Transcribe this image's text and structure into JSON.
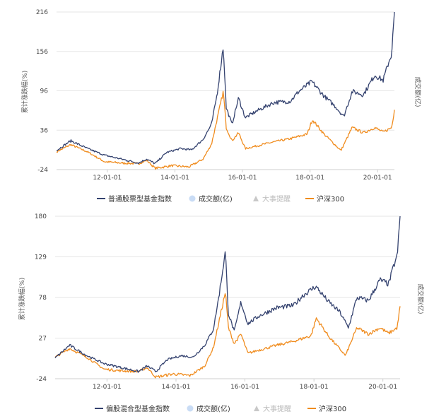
{
  "legend": {
    "volume": "成交额(亿)",
    "events": "大事提醒",
    "index300": "沪深300"
  },
  "charts": [
    {
      "y_axis_label": "累计涨跌幅(%)",
      "right_axis_label": "成交额(亿)",
      "yticks": [
        "216",
        "156",
        "96",
        "36",
        "-24"
      ],
      "xticks": [
        "12-01-01",
        "14-01-01",
        "16-01-01",
        "18-01-01",
        "20-01-01"
      ],
      "legend_series_1": "普通股票型基金指数"
    },
    {
      "y_axis_label": "累计涨跌幅(%)",
      "right_axis_label": "成交额(亿)",
      "yticks": [
        "180",
        "129",
        "78",
        "27",
        "-24"
      ],
      "xticks": [
        "12-01-01",
        "14-01-01",
        "16-01-01",
        "18-01-01",
        "20-01-01"
      ],
      "legend_series_1": "偏股混合型基金指数"
    }
  ],
  "colors": {
    "fund": "#34426f",
    "hs300": "#f08c1e",
    "volume": "#c9dcf5",
    "events": "#c8c8c8"
  },
  "chart_data": [
    {
      "type": "line",
      "x_start": "2010-07-01",
      "x_end": "2020-07-01",
      "ylim": [
        -24,
        216
      ],
      "yticks": [
        -24,
        36,
        96,
        156,
        216
      ],
      "series": [
        {
          "name": "普通股票型基金指数",
          "points": [
            [
              "2010-07-01",
              5
            ],
            [
              "2010-12-01",
              20
            ],
            [
              "2011-06-01",
              8
            ],
            [
              "2011-12-01",
              -2
            ],
            [
              "2012-06-01",
              -8
            ],
            [
              "2012-12-01",
              -14
            ],
            [
              "2013-03-01",
              -8
            ],
            [
              "2013-06-01",
              -15
            ],
            [
              "2013-10-01",
              2
            ],
            [
              "2014-03-01",
              8
            ],
            [
              "2014-07-01",
              6
            ],
            [
              "2014-11-01",
              22
            ],
            [
              "2015-02-01",
              45
            ],
            [
              "2015-04-01",
              90
            ],
            [
              "2015-06-08",
              164
            ],
            [
              "2015-07-10",
              70
            ],
            [
              "2015-09-10",
              45
            ],
            [
              "2015-11-20",
              85
            ],
            [
              "2016-02-01",
              55
            ],
            [
              "2016-06-01",
              65
            ],
            [
              "2016-12-01",
              78
            ],
            [
              "2017-06-01",
              80
            ],
            [
              "2017-09-01",
              95
            ],
            [
              "2018-01-20",
              110
            ],
            [
              "2018-06-01",
              88
            ],
            [
              "2018-10-01",
              72
            ],
            [
              "2019-01-01",
              57
            ],
            [
              "2019-04-01",
              95
            ],
            [
              "2019-08-01",
              90
            ],
            [
              "2019-12-01",
              120
            ],
            [
              "2020-03-01",
              112
            ],
            [
              "2020-05-01",
              140
            ],
            [
              "2020-06-01",
              152
            ],
            [
              "2020-07-01",
              216
            ]
          ]
        },
        {
          "name": "沪深300",
          "points": [
            [
              "2010-07-01",
              3
            ],
            [
              "2010-12-01",
              14
            ],
            [
              "2011-06-01",
              3
            ],
            [
              "2011-12-01",
              -12
            ],
            [
              "2012-06-01",
              -14
            ],
            [
              "2012-12-01",
              -15
            ],
            [
              "2013-03-01",
              -10
            ],
            [
              "2013-06-01",
              -22
            ],
            [
              "2013-12-01",
              -18
            ],
            [
              "2014-06-01",
              -20
            ],
            [
              "2014-11-01",
              -8
            ],
            [
              "2015-02-01",
              15
            ],
            [
              "2015-06-08",
              95
            ],
            [
              "2015-07-10",
              40
            ],
            [
              "2015-09-10",
              20
            ],
            [
              "2015-11-20",
              32
            ],
            [
              "2016-02-01",
              8
            ],
            [
              "2016-12-01",
              18
            ],
            [
              "2017-06-01",
              23
            ],
            [
              "2017-12-01",
              30
            ],
            [
              "2018-01-26",
              52
            ],
            [
              "2018-06-01",
              30
            ],
            [
              "2018-12-01",
              5
            ],
            [
              "2019-04-01",
              40
            ],
            [
              "2019-08-01",
              32
            ],
            [
              "2019-12-01",
              40
            ],
            [
              "2020-03-01",
              33
            ],
            [
              "2020-06-01",
              40
            ],
            [
              "2020-07-01",
              67
            ]
          ]
        }
      ]
    },
    {
      "type": "line",
      "x_start": "2010-07-01",
      "x_end": "2020-07-01",
      "ylim": [
        -24,
        180
      ],
      "yticks": [
        -24,
        27,
        78,
        129,
        180
      ],
      "series": [
        {
          "name": "偏股混合型基金指数",
          "points": [
            [
              "2010-07-01",
              2
            ],
            [
              "2010-12-01",
              18
            ],
            [
              "2011-06-01",
              5
            ],
            [
              "2011-12-01",
              -5
            ],
            [
              "2012-06-01",
              -10
            ],
            [
              "2012-12-01",
              -15
            ],
            [
              "2013-03-01",
              -8
            ],
            [
              "2013-06-01",
              -15
            ],
            [
              "2013-10-01",
              0
            ],
            [
              "2014-03-01",
              5
            ],
            [
              "2014-07-01",
              3
            ],
            [
              "2014-11-01",
              18
            ],
            [
              "2015-02-01",
              38
            ],
            [
              "2015-04-01",
              80
            ],
            [
              "2015-06-08",
              136
            ],
            [
              "2015-07-10",
              58
            ],
            [
              "2015-09-10",
              35
            ],
            [
              "2015-11-20",
              72
            ],
            [
              "2016-02-01",
              45
            ],
            [
              "2016-06-01",
              55
            ],
            [
              "2016-12-01",
              65
            ],
            [
              "2017-06-01",
              68
            ],
            [
              "2017-09-01",
              80
            ],
            [
              "2018-01-20",
              92
            ],
            [
              "2018-06-01",
              73
            ],
            [
              "2018-10-01",
              60
            ],
            [
              "2019-01-01",
              40
            ],
            [
              "2019-04-01",
              78
            ],
            [
              "2019-08-01",
              74
            ],
            [
              "2019-12-01",
              100
            ],
            [
              "2020-03-01",
              95
            ],
            [
              "2020-05-01",
              120
            ],
            [
              "2020-06-01",
              130
            ],
            [
              "2020-07-01",
              180
            ]
          ]
        },
        {
          "name": "沪深300",
          "points": [
            [
              "2010-07-01",
              3
            ],
            [
              "2010-12-01",
              14
            ],
            [
              "2011-06-01",
              3
            ],
            [
              "2011-12-01",
              -12
            ],
            [
              "2012-06-01",
              -14
            ],
            [
              "2012-12-01",
              -15
            ],
            [
              "2013-03-01",
              -10
            ],
            [
              "2013-06-01",
              -22
            ],
            [
              "2013-12-01",
              -18
            ],
            [
              "2014-06-01",
              -20
            ],
            [
              "2014-11-01",
              -8
            ],
            [
              "2015-02-01",
              15
            ],
            [
              "2015-06-08",
              85
            ],
            [
              "2015-07-10",
              40
            ],
            [
              "2015-09-10",
              20
            ],
            [
              "2015-11-20",
              32
            ],
            [
              "2016-02-01",
              8
            ],
            [
              "2016-12-01",
              18
            ],
            [
              "2017-06-01",
              23
            ],
            [
              "2017-12-01",
              30
            ],
            [
              "2018-01-26",
              52
            ],
            [
              "2018-06-01",
              30
            ],
            [
              "2018-12-01",
              5
            ],
            [
              "2019-04-01",
              40
            ],
            [
              "2019-08-01",
              32
            ],
            [
              "2019-12-01",
              40
            ],
            [
              "2020-03-01",
              33
            ],
            [
              "2020-06-01",
              40
            ],
            [
              "2020-07-01",
              67
            ]
          ]
        }
      ]
    }
  ]
}
